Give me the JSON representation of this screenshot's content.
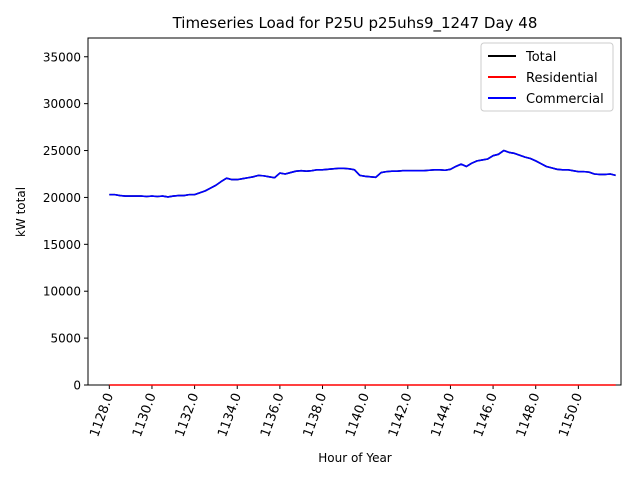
{
  "chart_data": {
    "type": "line",
    "title": "Timeseries Load for P25U p25uhs9_1247  Day 48",
    "xlabel": "Hour of Year",
    "ylabel": "kW total",
    "xlim": [
      1127.0,
      1152.0
    ],
    "ylim": [
      0,
      37000
    ],
    "x_ticks": [
      "1128.0",
      "1130.0",
      "1132.0",
      "1134.0",
      "1136.0",
      "1138.0",
      "1140.0",
      "1142.0",
      "1144.0",
      "1146.0",
      "1148.0",
      "1150.0"
    ],
    "x_tick_values": [
      1128,
      1130,
      1132,
      1134,
      1136,
      1138,
      1140,
      1142,
      1144,
      1146,
      1148,
      1150
    ],
    "y_ticks": [
      "0",
      "5000",
      "10000",
      "15000",
      "20000",
      "25000",
      "30000",
      "35000"
    ],
    "y_tick_values": [
      0,
      5000,
      10000,
      15000,
      20000,
      25000,
      30000,
      35000
    ],
    "legend_position": "top-right",
    "series": [
      {
        "name": "Total",
        "color": "#000000",
        "x": [
          1128.0,
          1128.25,
          1128.5,
          1128.75,
          1129.0,
          1129.25,
          1129.5,
          1129.75,
          1130.0,
          1130.25,
          1130.5,
          1130.75,
          1131.0,
          1131.25,
          1131.5,
          1131.75,
          1132.0,
          1132.25,
          1132.5,
          1132.75,
          1133.0,
          1133.25,
          1133.5,
          1133.75,
          1134.0,
          1134.25,
          1134.5,
          1134.75,
          1135.0,
          1135.25,
          1135.5,
          1135.75,
          1136.0,
          1136.25,
          1136.5,
          1136.75,
          1137.0,
          1137.25,
          1137.5,
          1137.75,
          1138.0,
          1138.25,
          1138.5,
          1138.75,
          1139.0,
          1139.25,
          1139.5,
          1139.75,
          1140.0,
          1140.25,
          1140.5,
          1140.75,
          1141.0,
          1141.25,
          1141.5,
          1141.75,
          1142.0,
          1142.25,
          1142.5,
          1142.75,
          1143.0,
          1143.25,
          1143.5,
          1143.75,
          1144.0,
          1144.25,
          1144.5,
          1144.75,
          1145.0,
          1145.25,
          1145.5,
          1145.75,
          1146.0,
          1146.25,
          1146.5,
          1146.75,
          1147.0,
          1147.25,
          1147.5,
          1147.75,
          1148.0,
          1148.25,
          1148.5,
          1148.75,
          1149.0,
          1149.25,
          1149.5,
          1149.75,
          1150.0,
          1150.25,
          1150.5,
          1150.75,
          1151.0,
          1151.25,
          1151.5,
          1151.75
        ],
        "y": [
          20300,
          20300,
          20200,
          20150,
          20150,
          20150,
          20150,
          20100,
          20150,
          20100,
          20150,
          20050,
          20150,
          20200,
          20200,
          20300,
          20300,
          20500,
          20700,
          21000,
          21300,
          21700,
          22050,
          21900,
          21900,
          22000,
          22100,
          22200,
          22350,
          22300,
          22200,
          22100,
          22600,
          22500,
          22650,
          22800,
          22850,
          22800,
          22850,
          22950,
          22950,
          23000,
          23050,
          23100,
          23100,
          23050,
          22950,
          22350,
          22250,
          22200,
          22150,
          22650,
          22750,
          22800,
          22800,
          22850,
          22850,
          22850,
          22850,
          22850,
          22900,
          22950,
          22950,
          22900,
          23000,
          23300,
          23550,
          23300,
          23650,
          23900,
          24000,
          24100,
          24450,
          24600,
          25000,
          24800,
          24700,
          24500,
          24300,
          24150,
          23900,
          23600,
          23300,
          23150,
          23000,
          22950,
          22950,
          22850,
          22750,
          22750,
          22700,
          22500,
          22450,
          22450,
          22500,
          22350
        ]
      },
      {
        "name": "Residential",
        "color": "#ff0000",
        "x": [
          1128.0,
          1151.75
        ],
        "y": [
          0,
          0
        ]
      },
      {
        "name": "Commercial",
        "color": "#0000ff",
        "x": [
          1128.0,
          1128.25,
          1128.5,
          1128.75,
          1129.0,
          1129.25,
          1129.5,
          1129.75,
          1130.0,
          1130.25,
          1130.5,
          1130.75,
          1131.0,
          1131.25,
          1131.5,
          1131.75,
          1132.0,
          1132.25,
          1132.5,
          1132.75,
          1133.0,
          1133.25,
          1133.5,
          1133.75,
          1134.0,
          1134.25,
          1134.5,
          1134.75,
          1135.0,
          1135.25,
          1135.5,
          1135.75,
          1136.0,
          1136.25,
          1136.5,
          1136.75,
          1137.0,
          1137.25,
          1137.5,
          1137.75,
          1138.0,
          1138.25,
          1138.5,
          1138.75,
          1139.0,
          1139.25,
          1139.5,
          1139.75,
          1140.0,
          1140.25,
          1140.5,
          1140.75,
          1141.0,
          1141.25,
          1141.5,
          1141.75,
          1142.0,
          1142.25,
          1142.5,
          1142.75,
          1143.0,
          1143.25,
          1143.5,
          1143.75,
          1144.0,
          1144.25,
          1144.5,
          1144.75,
          1145.0,
          1145.25,
          1145.5,
          1145.75,
          1146.0,
          1146.25,
          1146.5,
          1146.75,
          1147.0,
          1147.25,
          1147.5,
          1147.75,
          1148.0,
          1148.25,
          1148.5,
          1148.75,
          1149.0,
          1149.25,
          1149.5,
          1149.75,
          1150.0,
          1150.25,
          1150.5,
          1150.75,
          1151.0,
          1151.25,
          1151.5,
          1151.75
        ],
        "y": [
          20300,
          20300,
          20200,
          20150,
          20150,
          20150,
          20150,
          20100,
          20150,
          20100,
          20150,
          20050,
          20150,
          20200,
          20200,
          20300,
          20300,
          20500,
          20700,
          21000,
          21300,
          21700,
          22050,
          21900,
          21900,
          22000,
          22100,
          22200,
          22350,
          22300,
          22200,
          22100,
          22600,
          22500,
          22650,
          22800,
          22850,
          22800,
          22850,
          22950,
          22950,
          23000,
          23050,
          23100,
          23100,
          23050,
          22950,
          22350,
          22250,
          22200,
          22150,
          22650,
          22750,
          22800,
          22800,
          22850,
          22850,
          22850,
          22850,
          22850,
          22900,
          22950,
          22950,
          22900,
          23000,
          23300,
          23550,
          23300,
          23650,
          23900,
          24000,
          24100,
          24450,
          24600,
          25000,
          24800,
          24700,
          24500,
          24300,
          24150,
          23900,
          23600,
          23300,
          23150,
          23000,
          22950,
          22950,
          22850,
          22750,
          22750,
          22700,
          22500,
          22450,
          22450,
          22500,
          22350
        ]
      }
    ]
  }
}
